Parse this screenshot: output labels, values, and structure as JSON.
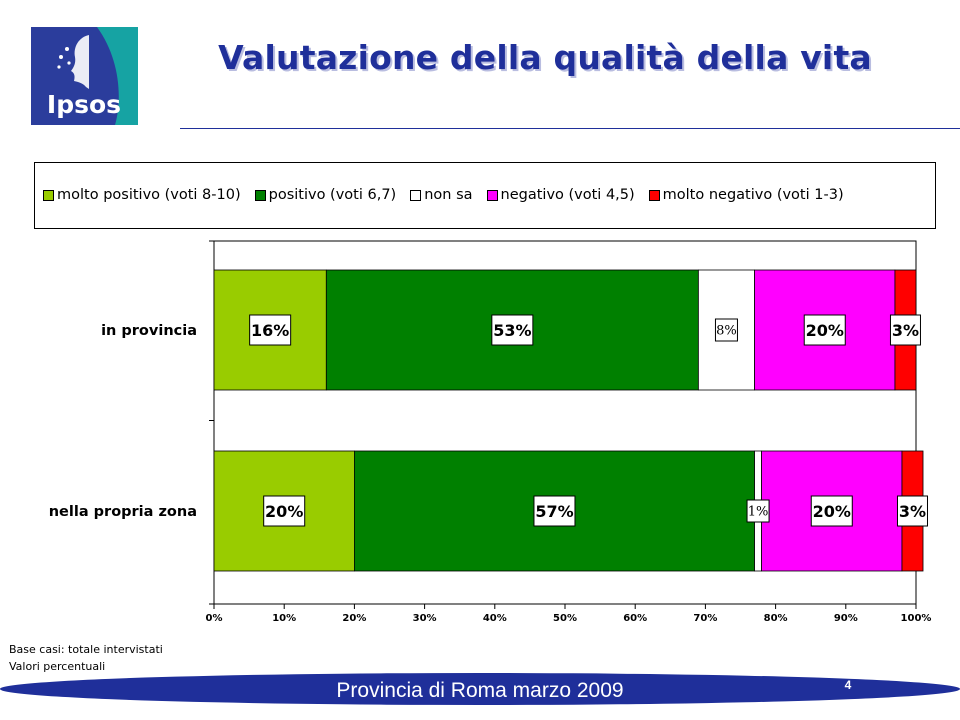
{
  "header": {
    "title": "Valutazione della qualità della vita",
    "logo_text": "Ipsos"
  },
  "footnotes": {
    "line1": "Base casi: totale intervistati",
    "line2": "Valori percentuali"
  },
  "footer": {
    "text": "Provincia di Roma marzo 2009",
    "page_number": "4"
  },
  "colors": {
    "title": "#1f2f9a",
    "footer_band": "#1f2f9a",
    "logo_blue": "#2b3d9c",
    "logo_teal": "#16a3a3"
  },
  "chart_data": {
    "type": "bar",
    "orientation": "horizontal",
    "stacked": true,
    "categories": [
      "in provincia",
      "nella propria zona"
    ],
    "series": [
      {
        "name": "molto positivo (voti 8-10)",
        "color": "#99cc00",
        "values": [
          16,
          20
        ],
        "labels": [
          "16%",
          "20%"
        ]
      },
      {
        "name": "positivo (voti 6,7)",
        "color": "#008000",
        "values": [
          53,
          57
        ],
        "labels": [
          "53%",
          "57%"
        ]
      },
      {
        "name": "non sa",
        "color": "#ffffff",
        "values": [
          8,
          1
        ],
        "labels": [
          "8%",
          "1%"
        ]
      },
      {
        "name": "negativo (voti 4,5)",
        "color": "#ff00ff",
        "values": [
          20,
          20
        ],
        "labels": [
          "20%",
          "20%"
        ]
      },
      {
        "name": "molto negativo (voti 1-3)",
        "color": "#ff0000",
        "values": [
          3,
          3
        ],
        "labels": [
          "3%",
          "3%"
        ]
      }
    ],
    "xlim": [
      0,
      100
    ],
    "xticks": [
      "0%",
      "10%",
      "20%",
      "30%",
      "40%",
      "50%",
      "60%",
      "70%",
      "80%",
      "90%",
      "100%"
    ],
    "legend_position": "top",
    "grid": false
  }
}
